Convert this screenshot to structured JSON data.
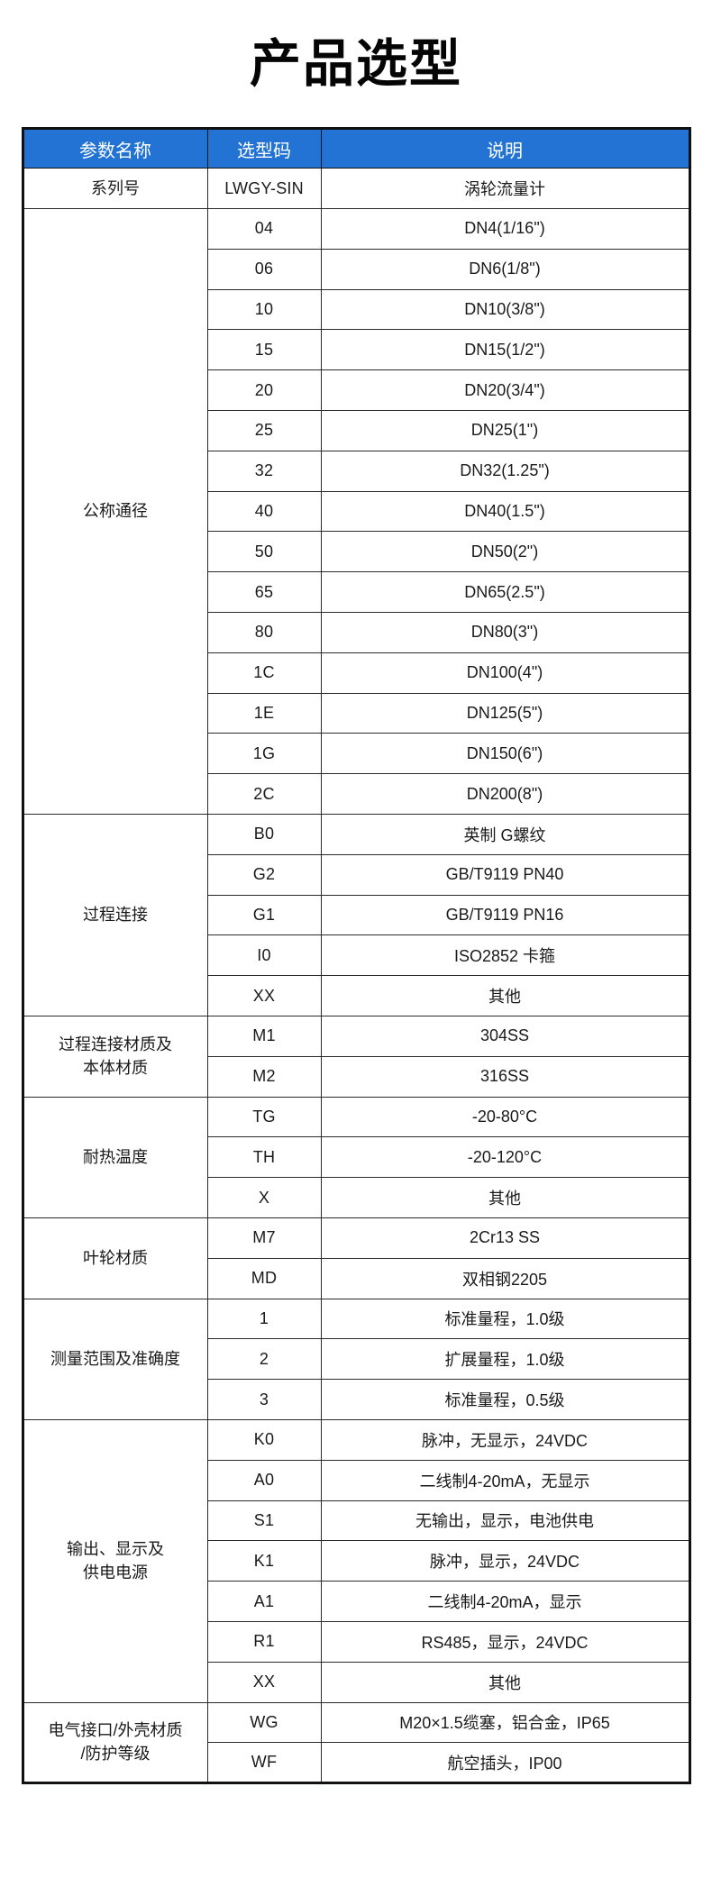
{
  "page": {
    "title": "产品选型"
  },
  "colors": {
    "header_bg": "#2273d4",
    "header_text": "#ffffff",
    "border_outer": "#101114",
    "border_inner": "#2a2a2e",
    "text": "#1a1a1a",
    "title": "#050505",
    "page_bg": "#ffffff"
  },
  "table": {
    "headers": [
      "参数名称",
      "选型码",
      "说明"
    ],
    "groups": [
      {
        "name": "系列号",
        "rows": [
          {
            "code": "LWGY-SIN",
            "desc": "涡轮流量计"
          }
        ]
      },
      {
        "name": "公称通径",
        "rows": [
          {
            "code": "04",
            "desc": "DN4(1/16\")"
          },
          {
            "code": "06",
            "desc": "DN6(1/8\")"
          },
          {
            "code": "10",
            "desc": "DN10(3/8\")"
          },
          {
            "code": "15",
            "desc": "DN15(1/2\")"
          },
          {
            "code": "20",
            "desc": "DN20(3/4\")"
          },
          {
            "code": "25",
            "desc": "DN25(1\")"
          },
          {
            "code": "32",
            "desc": "DN32(1.25\")"
          },
          {
            "code": "40",
            "desc": "DN40(1.5\")"
          },
          {
            "code": "50",
            "desc": "DN50(2\")"
          },
          {
            "code": "65",
            "desc": "DN65(2.5\")"
          },
          {
            "code": "80",
            "desc": "DN80(3\")"
          },
          {
            "code": "1C",
            "desc": "DN100(4\")"
          },
          {
            "code": "1E",
            "desc": "DN125(5\")"
          },
          {
            "code": "1G",
            "desc": "DN150(6\")"
          },
          {
            "code": "2C",
            "desc": "DN200(8\")"
          }
        ]
      },
      {
        "name": "过程连接",
        "rows": [
          {
            "code": "B0",
            "desc": "英制 G螺纹"
          },
          {
            "code": "G2",
            "desc": "GB/T9119 PN40"
          },
          {
            "code": "G1",
            "desc": "GB/T9119 PN16"
          },
          {
            "code": "I0",
            "desc": "ISO2852 卡箍"
          },
          {
            "code": "XX",
            "desc": "其他"
          }
        ]
      },
      {
        "name": "过程连接材质及\n本体材质",
        "rows": [
          {
            "code": "M1",
            "desc": "304SS"
          },
          {
            "code": "M2",
            "desc": "316SS"
          }
        ]
      },
      {
        "name": "耐热温度",
        "rows": [
          {
            "code": "TG",
            "desc": "-20-80°C"
          },
          {
            "code": "TH",
            "desc": "-20-120°C"
          },
          {
            "code": "X",
            "desc": "其他"
          }
        ]
      },
      {
        "name": "叶轮材质",
        "rows": [
          {
            "code": "M7",
            "desc": "2Cr13 SS"
          },
          {
            "code": "MD",
            "desc": "双相钢2205"
          }
        ]
      },
      {
        "name": "测量范围及准确度",
        "rows": [
          {
            "code": "1",
            "desc": "标准量程，1.0级"
          },
          {
            "code": "2",
            "desc": "扩展量程，1.0级"
          },
          {
            "code": "3",
            "desc": "标准量程，0.5级"
          }
        ]
      },
      {
        "name": "输出、显示及\n供电电源",
        "rows": [
          {
            "code": "K0",
            "desc": "脉冲，无显示，24VDC"
          },
          {
            "code": "A0",
            "desc": "二线制4-20mA，无显示"
          },
          {
            "code": "S1",
            "desc": "无输出，显示，电池供电"
          },
          {
            "code": "K1",
            "desc": "脉冲，显示，24VDC"
          },
          {
            "code": "A1",
            "desc": "二线制4-20mA，显示"
          },
          {
            "code": "R1",
            "desc": "RS485，显示，24VDC"
          },
          {
            "code": "XX",
            "desc": "其他"
          }
        ]
      },
      {
        "name": "电气接口/外壳材质\n/防护等级",
        "rows": [
          {
            "code": "WG",
            "desc": "M20×1.5缆塞，铝合金，IP65"
          },
          {
            "code": "WF",
            "desc": "航空插头，IP00"
          }
        ]
      }
    ]
  }
}
